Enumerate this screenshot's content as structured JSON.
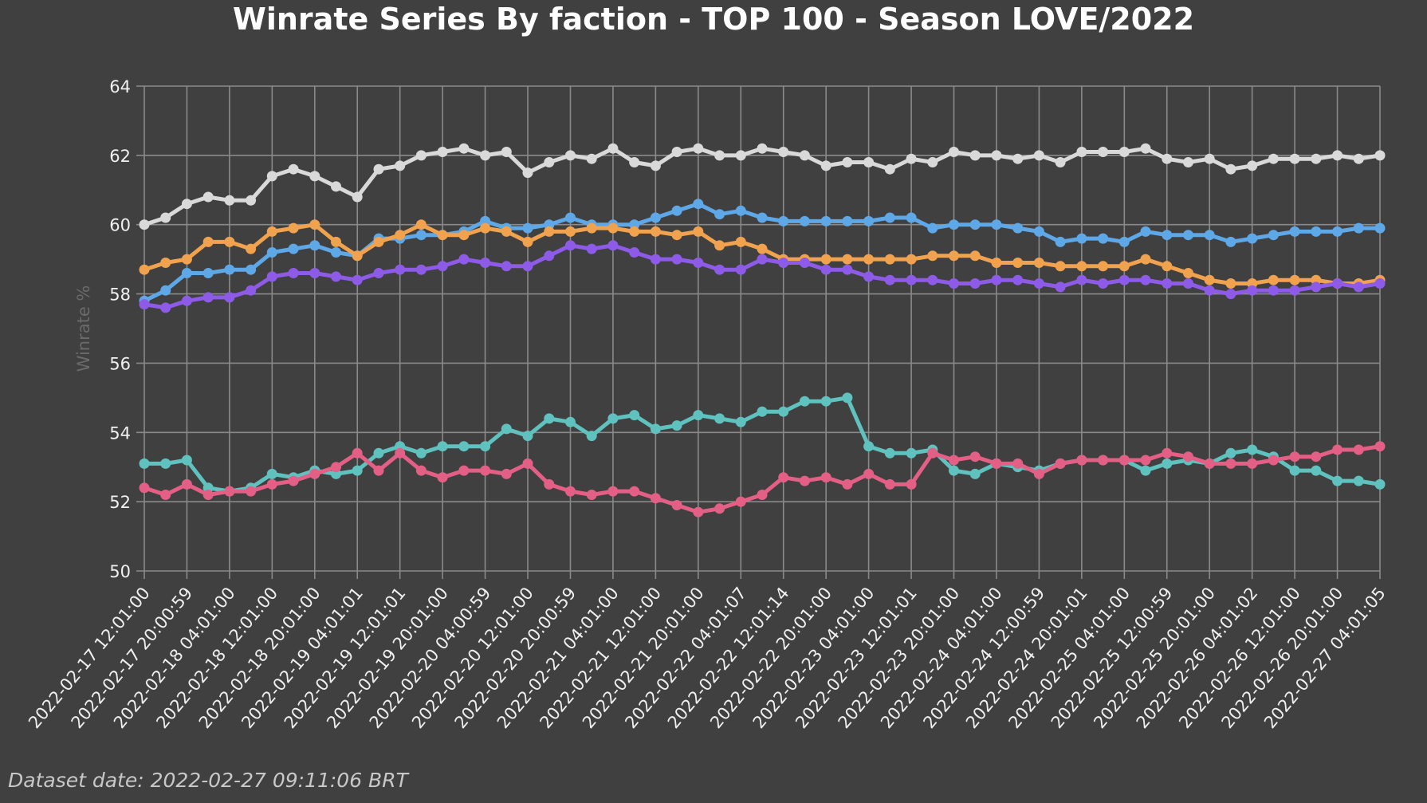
{
  "chart_data": {
    "type": "line",
    "title": "Winrate Series By faction - TOP 100 - Season LOVE/2022",
    "xlabel": "",
    "ylabel": "Winrate %",
    "ylim": [
      50,
      64
    ],
    "yticks": [
      50,
      52,
      54,
      56,
      58,
      60,
      62,
      64
    ],
    "grid": true,
    "legend": "none",
    "xticks": [
      "2022-02-17 12:01:00",
      "2022-02-17 20:00:59",
      "2022-02-18 04:01:00",
      "2022-02-18 12:01:00",
      "2022-02-18 20:01:00",
      "2022-02-19 04:01:01",
      "2022-02-19 12:01:01",
      "2022-02-19 20:01:00",
      "2022-02-20 04:00:59",
      "2022-02-20 12:01:00",
      "2022-02-20 20:00:59",
      "2022-02-21 04:01:00",
      "2022-02-21 12:01:00",
      "2022-02-21 20:01:00",
      "2022-02-22 04:01:07",
      "2022-02-22 12:01:14",
      "2022-02-22 20:01:00",
      "2022-02-23 04:01:00",
      "2022-02-23 12:01:01",
      "2022-02-23 20:01:00",
      "2022-02-24 04:01:00",
      "2022-02-24 12:00:59",
      "2022-02-24 20:01:01",
      "2022-02-25 04:01:00",
      "2022-02-25 12:00:59",
      "2022-02-25 20:01:00",
      "2022-02-26 04:01:02",
      "2022-02-26 12:01:00",
      "2022-02-26 20:01:00",
      "2022-02-27 04:01:05"
    ],
    "series": [
      {
        "color": "#d9d9d9",
        "values": [
          60.0,
          60.2,
          60.6,
          60.8,
          60.7,
          60.7,
          61.4,
          61.6,
          61.4,
          61.1,
          60.8,
          61.6,
          61.7,
          62.0,
          62.1,
          62.2,
          62.0,
          62.1,
          61.5,
          61.8,
          62.0,
          61.9,
          62.2,
          61.8,
          61.7,
          62.1,
          62.2,
          62.0,
          62.0,
          62.2,
          62.1,
          62.0,
          61.7,
          61.8,
          61.8,
          61.6,
          61.9,
          61.8,
          62.1,
          62.0,
          62.0,
          61.9,
          62.0,
          61.8,
          62.1,
          62.1,
          62.1,
          62.2,
          61.9,
          61.8,
          61.9,
          61.6,
          61.7,
          61.9,
          61.9,
          61.9,
          62.0,
          61.9,
          62.0
        ]
      },
      {
        "color": "#5ea8e8",
        "values": [
          57.8,
          58.1,
          58.6,
          58.6,
          58.7,
          58.7,
          59.2,
          59.3,
          59.4,
          59.2,
          59.1,
          59.6,
          59.6,
          59.7,
          59.7,
          59.8,
          60.1,
          59.9,
          59.9,
          60.0,
          60.2,
          60.0,
          60.0,
          60.0,
          60.2,
          60.4,
          60.6,
          60.3,
          60.4,
          60.2,
          60.1,
          60.1,
          60.1,
          60.1,
          60.1,
          60.2,
          60.2,
          59.9,
          60.0,
          60.0,
          60.0,
          59.9,
          59.8,
          59.5,
          59.6,
          59.6,
          59.5,
          59.8,
          59.7,
          59.7,
          59.7,
          59.5,
          59.6,
          59.7,
          59.8,
          59.8,
          59.8,
          59.9,
          59.9
        ]
      },
      {
        "color": "#f0a24e",
        "values": [
          58.7,
          58.9,
          59.0,
          59.5,
          59.5,
          59.3,
          59.8,
          59.9,
          60.0,
          59.5,
          59.1,
          59.5,
          59.7,
          60.0,
          59.7,
          59.7,
          59.9,
          59.8,
          59.5,
          59.8,
          59.8,
          59.9,
          59.9,
          59.8,
          59.8,
          59.7,
          59.8,
          59.4,
          59.5,
          59.3,
          59.0,
          59.0,
          59.0,
          59.0,
          59.0,
          59.0,
          59.0,
          59.1,
          59.1,
          59.1,
          58.9,
          58.9,
          58.9,
          58.8,
          58.8,
          58.8,
          58.8,
          59.0,
          58.8,
          58.6,
          58.4,
          58.3,
          58.3,
          58.4,
          58.4,
          58.4,
          58.3,
          58.3,
          58.4
        ]
      },
      {
        "color": "#8e5be8",
        "values": [
          57.7,
          57.6,
          57.8,
          57.9,
          57.9,
          58.1,
          58.5,
          58.6,
          58.6,
          58.5,
          58.4,
          58.6,
          58.7,
          58.7,
          58.8,
          59.0,
          58.9,
          58.8,
          58.8,
          59.1,
          59.4,
          59.3,
          59.4,
          59.2,
          59.0,
          59.0,
          58.9,
          58.7,
          58.7,
          59.0,
          58.9,
          58.9,
          58.7,
          58.7,
          58.5,
          58.4,
          58.4,
          58.4,
          58.3,
          58.3,
          58.4,
          58.4,
          58.3,
          58.2,
          58.4,
          58.3,
          58.4,
          58.4,
          58.3,
          58.3,
          58.1,
          58.0,
          58.1,
          58.1,
          58.1,
          58.2,
          58.3,
          58.2,
          58.3
        ]
      },
      {
        "color": "#5fc2bf",
        "values": [
          53.1,
          53.1,
          53.2,
          52.4,
          52.3,
          52.4,
          52.8,
          52.7,
          52.9,
          52.8,
          52.9,
          53.4,
          53.6,
          53.4,
          53.6,
          53.6,
          53.6,
          54.1,
          53.9,
          54.4,
          54.3,
          53.9,
          54.4,
          54.5,
          54.1,
          54.2,
          54.5,
          54.4,
          54.3,
          54.6,
          54.6,
          54.9,
          54.9,
          55.0,
          53.6,
          53.4,
          53.4,
          53.5,
          52.9,
          52.8,
          53.1,
          53.0,
          52.9,
          53.1,
          53.2,
          53.2,
          53.2,
          52.9,
          53.1,
          53.2,
          53.1,
          53.4,
          53.5,
          53.3,
          52.9,
          52.9,
          52.6,
          52.6,
          52.5
        ]
      },
      {
        "color": "#e45f85",
        "values": [
          52.4,
          52.2,
          52.5,
          52.2,
          52.3,
          52.3,
          52.5,
          52.6,
          52.8,
          53.0,
          53.4,
          52.9,
          53.4,
          52.9,
          52.7,
          52.9,
          52.9,
          52.8,
          53.1,
          52.5,
          52.3,
          52.2,
          52.3,
          52.3,
          52.1,
          51.9,
          51.7,
          51.8,
          52.0,
          52.2,
          52.7,
          52.6,
          52.7,
          52.5,
          52.8,
          52.5,
          52.5,
          53.4,
          53.2,
          53.3,
          53.1,
          53.1,
          52.8,
          53.1,
          53.2,
          53.2,
          53.2,
          53.2,
          53.4,
          53.3,
          53.1,
          53.1,
          53.1,
          53.2,
          53.3,
          53.3,
          53.5,
          53.5,
          53.6
        ]
      }
    ]
  },
  "footer": {
    "dataset_date": "Dataset date: 2022-02-27 09:11:06 BRT"
  }
}
